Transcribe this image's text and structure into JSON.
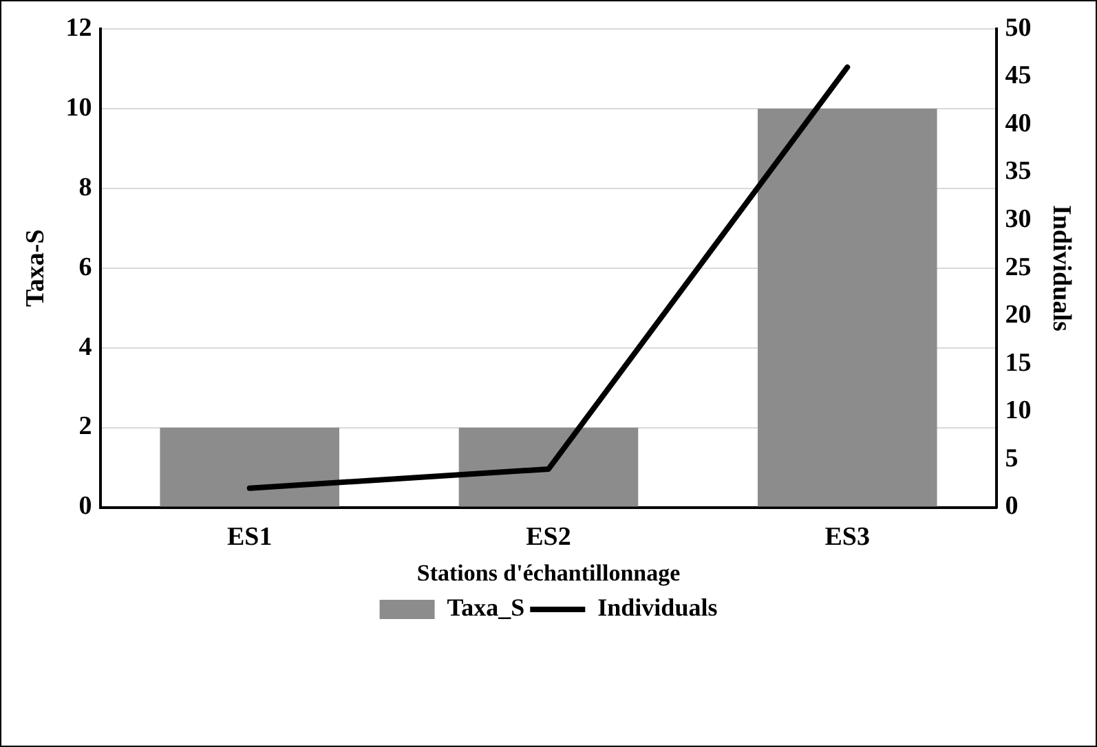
{
  "chart_data": {
    "type": "bar",
    "xlabel": "Stations d'échantillonnage",
    "ylabel": "Taxa-S",
    "y2label": "Individuals",
    "categories": [
      "ES1",
      "ES2",
      "ES3"
    ],
    "series": [
      {
        "name": "Taxa_S",
        "color": "#8c8c8c",
        "values": [
          2,
          2,
          10
        ]
      },
      {
        "name": "Individuals",
        "type": "line",
        "axis": "y2",
        "color": "#000000",
        "values": [
          2,
          4,
          46
        ]
      }
    ],
    "ylim": [
      0,
      12
    ],
    "yticks": [
      0,
      2,
      4,
      6,
      8,
      10,
      12
    ],
    "y2lim": [
      0,
      50
    ],
    "y2ticks": [
      0,
      5,
      10,
      15,
      20,
      25,
      30,
      35,
      40,
      45,
      50
    ],
    "grid": "y",
    "legend": "bottom",
    "marker": "none"
  }
}
